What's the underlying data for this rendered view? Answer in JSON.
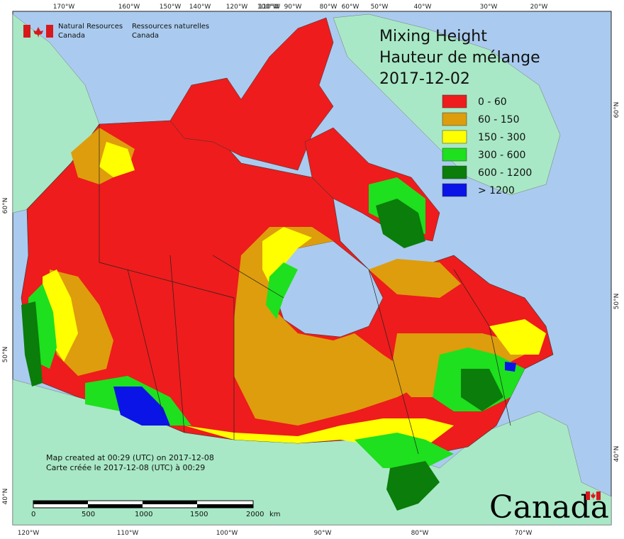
{
  "header": {
    "agency_en": "Natural Resources",
    "agency_en_2": "Canada",
    "agency_fr": "Ressources naturelles",
    "agency_fr_2": "Canada"
  },
  "title": {
    "en": "Mixing Height",
    "fr": "Hauteur de mélange",
    "date": "2017-12-02"
  },
  "legend": [
    {
      "label": "0 - 60",
      "color": "#ee1c1c"
    },
    {
      "label": "60 - 150",
      "color": "#de9d0c"
    },
    {
      "label": "150 - 300",
      "color": "#ffff00"
    },
    {
      "label": "300 - 600",
      "color": "#1ee01e"
    },
    {
      "label": "600 - 1200",
      "color": "#0a7d0a"
    },
    {
      "label": "> 1200",
      "color": "#0a14e6"
    }
  ],
  "colors": {
    "ocean": "#aacbef",
    "foreign_land": "#a8e8c6",
    "boundary": "#222222"
  },
  "ticks": {
    "top": [
      "170°W",
      "160°W",
      "150°W",
      "140°W",
      "120°W",
      "110°W",
      "100°W",
      "90°W",
      "80°W",
      "60°W",
      "50°W",
      "40°W",
      "30°W",
      "20°W"
    ],
    "bottom": [
      "120°W",
      "110°W",
      "100°W",
      "90°W",
      "80°W",
      "70°W"
    ],
    "left": [
      "60°N",
      "50°N",
      "40°N"
    ],
    "right": [
      "60°N",
      "50°N",
      "40°N"
    ]
  },
  "note": {
    "en": "Map created at 00:29 (UTC) on 2017-12-08",
    "fr": "Carte créée le 2017-12-08 (UTC) à 00:29"
  },
  "scale_bar": {
    "labels": [
      "0",
      "500",
      "1000",
      "1500",
      "2000"
    ],
    "unit": "km"
  },
  "wordmark": "Canada"
}
